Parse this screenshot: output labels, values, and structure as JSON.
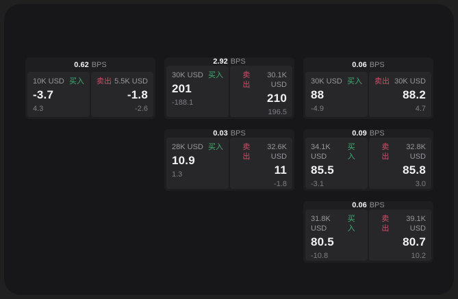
{
  "colors": {
    "page_bg": "#202021",
    "window_bg": "#171719",
    "card_bg": "#1e1e21",
    "subcard_bg": "#27272a",
    "text_primary": "#f2f2f3",
    "text_secondary": "#98989d",
    "text_muted": "#7f7f85",
    "buy_green": "#3fae71",
    "sell_red": "#ce4f67"
  },
  "cards": [
    {
      "row": 1,
      "col": 1,
      "bps": "0.62",
      "bps_unit": "BPS",
      "buy": {
        "size": "10K USD",
        "side": "买入",
        "value": "-3.7",
        "delta": "4.3"
      },
      "sell": {
        "side": "卖出",
        "size": "5.5K USD",
        "value": "-1.8",
        "delta": "-2.6"
      }
    },
    {
      "row": 1,
      "col": 2,
      "bps": "2.92",
      "bps_unit": "BPS",
      "buy": {
        "size": "30K USD",
        "side": "买入",
        "value": "201",
        "delta": "-188.1"
      },
      "sell": {
        "side": "卖出",
        "size": "30.1K USD",
        "value": "210",
        "delta": "196.5"
      }
    },
    {
      "row": 1,
      "col": 3,
      "bps": "0.06",
      "bps_unit": "BPS",
      "buy": {
        "size": "30K USD",
        "side": "买入",
        "value": "88",
        "delta": "-4.9"
      },
      "sell": {
        "side": "卖出",
        "size": "30K USD",
        "value": "88.2",
        "delta": "4.7"
      }
    },
    {
      "row": 2,
      "col": 2,
      "bps": "0.03",
      "bps_unit": "BPS",
      "buy": {
        "size": "28K USD",
        "side": "买入",
        "value": "10.9",
        "delta": "1.3"
      },
      "sell": {
        "side": "卖出",
        "size": "32.6K USD",
        "value": "11",
        "delta": "-1.8"
      }
    },
    {
      "row": 2,
      "col": 3,
      "bps": "0.09",
      "bps_unit": "BPS",
      "buy": {
        "size": "34.1K USD",
        "side": "买入",
        "value": "85.5",
        "delta": "-3.1"
      },
      "sell": {
        "side": "卖出",
        "size": "32.8K USD",
        "value": "85.8",
        "delta": "3.0"
      }
    },
    {
      "row": 3,
      "col": 3,
      "bps": "0.06",
      "bps_unit": "BPS",
      "buy": {
        "size": "31.8K USD",
        "side": "买入",
        "value": "80.5",
        "delta": "-10.8"
      },
      "sell": {
        "side": "卖出",
        "size": "39.1K USD",
        "value": "80.7",
        "delta": "10.2"
      }
    }
  ]
}
